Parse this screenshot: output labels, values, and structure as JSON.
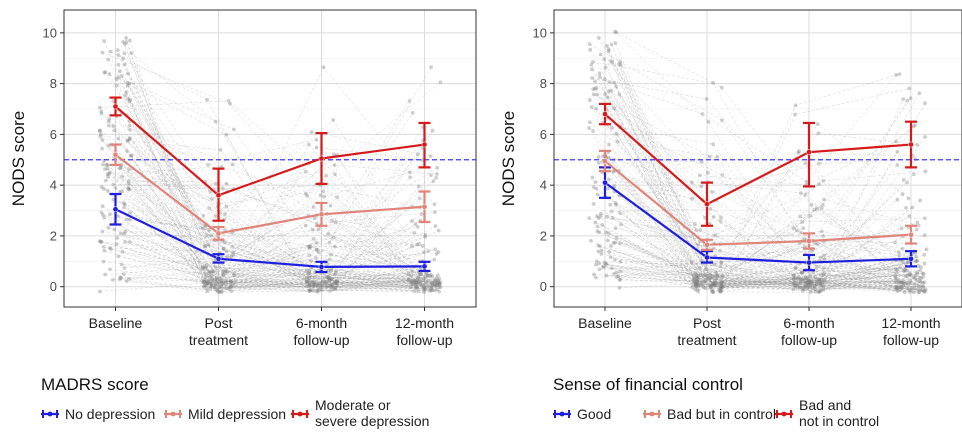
{
  "chart_data": [
    {
      "type": "line",
      "ylabel": "NODS score",
      "xlabel": "",
      "categories": [
        "Baseline",
        "Post\ntreatment",
        "6-month\nfollow-up",
        "12-month\nfollow-up"
      ],
      "yticks": [
        0,
        2,
        4,
        6,
        8,
        10
      ],
      "ylim": [
        -0.8,
        10.9
      ],
      "grid": true,
      "reference_line": {
        "y": 5,
        "style": "dashed",
        "color": "#3b3bff"
      },
      "legend": {
        "title": "MADRS score",
        "placement": "bottom",
        "labels": [
          "No depression",
          "Mild depression",
          "Moderate or\nsevere depression"
        ]
      },
      "series": [
        {
          "name": "No depression",
          "color": "#1f1fe0",
          "values": [
            3.05,
            1.1,
            0.78,
            0.8
          ],
          "err_low": [
            2.45,
            0.95,
            0.58,
            0.62
          ],
          "err_high": [
            3.65,
            1.28,
            0.98,
            0.98
          ]
        },
        {
          "name": "Mild depression",
          "color": "#e0857a",
          "values": [
            5.2,
            2.1,
            2.85,
            3.15
          ],
          "err_low": [
            4.8,
            1.85,
            2.4,
            2.55
          ],
          "err_high": [
            5.6,
            2.35,
            3.3,
            3.75
          ]
        },
        {
          "name": "Moderate or\nsevere depression",
          "color": "#d41a1a",
          "values": [
            7.1,
            3.6,
            5.05,
            5.6
          ],
          "err_low": [
            6.75,
            2.6,
            4.05,
            4.7
          ],
          "err_high": [
            7.45,
            4.65,
            6.05,
            6.45
          ]
        }
      ]
    },
    {
      "type": "line",
      "ylabel": "NODS score",
      "xlabel": "",
      "categories": [
        "Baseline",
        "Post\ntreatment",
        "6-month\nfollow-up",
        "12-month\nfollow-up"
      ],
      "yticks": [
        0,
        2,
        4,
        6,
        8,
        10
      ],
      "ylim": [
        -0.8,
        10.9
      ],
      "grid": true,
      "reference_line": {
        "y": 5,
        "style": "dashed",
        "color": "#3b3bff"
      },
      "legend": {
        "title": "Sense of financial control",
        "placement": "bottom",
        "labels": [
          "Good",
          "Bad but in control",
          "Bad and\nnot in control"
        ]
      },
      "series": [
        {
          "name": "Good",
          "color": "#1f1fe0",
          "values": [
            4.1,
            1.15,
            0.95,
            1.1
          ],
          "err_low": [
            3.5,
            0.95,
            0.65,
            0.8
          ],
          "err_high": [
            4.7,
            1.4,
            1.25,
            1.4
          ]
        },
        {
          "name": "Bad but in control",
          "color": "#e0857a",
          "values": [
            4.95,
            1.65,
            1.8,
            2.05
          ],
          "err_low": [
            4.55,
            1.45,
            1.5,
            1.7
          ],
          "err_high": [
            5.35,
            1.85,
            2.1,
            2.4
          ]
        },
        {
          "name": "Bad and\nnot in control",
          "color": "#d41a1a",
          "values": [
            6.8,
            3.25,
            5.3,
            5.6
          ],
          "err_low": [
            6.4,
            2.4,
            3.95,
            4.7
          ],
          "err_high": [
            7.2,
            4.1,
            6.45,
            6.5
          ]
        }
      ]
    }
  ]
}
